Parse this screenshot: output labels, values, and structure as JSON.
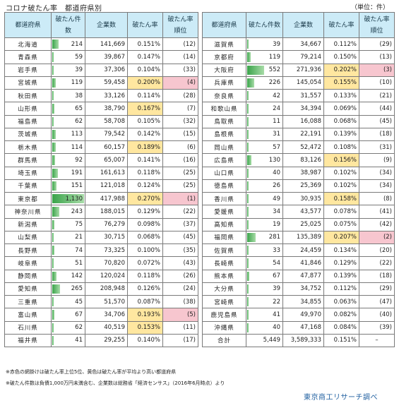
{
  "title": "コロナ破たん率　都道府県別",
  "unit": "（単位：件）",
  "headers": {
    "pref": "都道府県",
    "bankr": "破たん件数",
    "companies": "企業数",
    "rate": "破たん率",
    "rank": "破たん率順位"
  },
  "colors": {
    "header_bg": "#ccebf7",
    "yellow": "#ffe7a0",
    "pink": "#f7c6cf",
    "bar": "#3aa34a"
  },
  "left_rows": [
    {
      "pref": "北海道",
      "bankr": "214",
      "companies": "141,669",
      "rate": "0.151%",
      "rank": "(12)",
      "hl": ""
    },
    {
      "pref": "青森県",
      "bankr": "59",
      "companies": "39,867",
      "rate": "0.147%",
      "rank": "(14)",
      "hl": ""
    },
    {
      "pref": "岩手県",
      "bankr": "39",
      "companies": "37,306",
      "rate": "0.104%",
      "rank": "(33)",
      "hl": ""
    },
    {
      "pref": "宮城県",
      "bankr": "119",
      "companies": "59,458",
      "rate": "0.200%",
      "rank": "(4)",
      "hl": "top"
    },
    {
      "pref": "秋田県",
      "bankr": "38",
      "companies": "33,126",
      "rate": "0.114%",
      "rank": "(28)",
      "hl": ""
    },
    {
      "pref": "山形県",
      "bankr": "65",
      "companies": "38,790",
      "rate": "0.167%",
      "rank": "(7)",
      "hl": "above"
    },
    {
      "pref": "福島県",
      "bankr": "62",
      "companies": "58,708",
      "rate": "0.105%",
      "rank": "(32)",
      "hl": ""
    },
    {
      "pref": "茨城県",
      "bankr": "113",
      "companies": "79,542",
      "rate": "0.142%",
      "rank": "(15)",
      "hl": ""
    },
    {
      "pref": "栃木県",
      "bankr": "114",
      "companies": "60,157",
      "rate": "0.189%",
      "rank": "(6)",
      "hl": "above"
    },
    {
      "pref": "群馬県",
      "bankr": "92",
      "companies": "65,007",
      "rate": "0.141%",
      "rank": "(16)",
      "hl": ""
    },
    {
      "pref": "埼玉県",
      "bankr": "191",
      "companies": "161,613",
      "rate": "0.118%",
      "rank": "(25)",
      "hl": ""
    },
    {
      "pref": "千葉県",
      "bankr": "151",
      "companies": "121,018",
      "rate": "0.124%",
      "rank": "(25)",
      "hl": ""
    },
    {
      "pref": "東京都",
      "bankr": "1,130",
      "companies": "417,988",
      "rate": "0.270%",
      "rank": "(1)",
      "hl": "top"
    },
    {
      "pref": "神奈川県",
      "bankr": "243",
      "companies": "188,015",
      "rate": "0.129%",
      "rank": "(22)",
      "hl": ""
    },
    {
      "pref": "新潟県",
      "bankr": "75",
      "companies": "76,279",
      "rate": "0.098%",
      "rank": "(37)",
      "hl": ""
    },
    {
      "pref": "山梨県",
      "bankr": "21",
      "companies": "30,715",
      "rate": "0.068%",
      "rank": "(45)",
      "hl": ""
    },
    {
      "pref": "長野県",
      "bankr": "74",
      "companies": "73,325",
      "rate": "0.100%",
      "rank": "(35)",
      "hl": ""
    },
    {
      "pref": "岐阜県",
      "bankr": "51",
      "companies": "70,820",
      "rate": "0.072%",
      "rank": "(43)",
      "hl": ""
    },
    {
      "pref": "静岡県",
      "bankr": "142",
      "companies": "120,024",
      "rate": "0.118%",
      "rank": "(26)",
      "hl": ""
    },
    {
      "pref": "愛知県",
      "bankr": "265",
      "companies": "208,948",
      "rate": "0.126%",
      "rank": "(24)",
      "hl": ""
    },
    {
      "pref": "三重県",
      "bankr": "45",
      "companies": "51,570",
      "rate": "0.087%",
      "rank": "(38)",
      "hl": ""
    },
    {
      "pref": "富山県",
      "bankr": "67",
      "companies": "34,706",
      "rate": "0.193%",
      "rank": "(5)",
      "hl": "top"
    },
    {
      "pref": "石川県",
      "bankr": "62",
      "companies": "40,519",
      "rate": "0.153%",
      "rank": "(11)",
      "hl": "above"
    },
    {
      "pref": "福井県",
      "bankr": "41",
      "companies": "29,255",
      "rate": "0.140%",
      "rank": "(17)",
      "hl": ""
    }
  ],
  "right_rows": [
    {
      "pref": "滋賀県",
      "bankr": "39",
      "companies": "34,667",
      "rate": "0.112%",
      "rank": "(29)",
      "hl": ""
    },
    {
      "pref": "京都府",
      "bankr": "119",
      "companies": "79,214",
      "rate": "0.150%",
      "rank": "(13)",
      "hl": ""
    },
    {
      "pref": "大阪府",
      "bankr": "552",
      "companies": "271,936",
      "rate": "0.202%",
      "rank": "(3)",
      "hl": "top"
    },
    {
      "pref": "兵庫県",
      "bankr": "226",
      "companies": "145,054",
      "rate": "0.155%",
      "rank": "(10)",
      "hl": "above"
    },
    {
      "pref": "奈良県",
      "bankr": "42",
      "companies": "31,557",
      "rate": "0.133%",
      "rank": "(21)",
      "hl": ""
    },
    {
      "pref": "和歌山県",
      "bankr": "24",
      "companies": "34,394",
      "rate": "0.069%",
      "rank": "(44)",
      "hl": ""
    },
    {
      "pref": "鳥取県",
      "bankr": "11",
      "companies": "16,088",
      "rate": "0.068%",
      "rank": "(45)",
      "hl": ""
    },
    {
      "pref": "島根県",
      "bankr": "31",
      "companies": "22,191",
      "rate": "0.139%",
      "rank": "(18)",
      "hl": ""
    },
    {
      "pref": "岡山県",
      "bankr": "57",
      "companies": "52,472",
      "rate": "0.108%",
      "rank": "(31)",
      "hl": ""
    },
    {
      "pref": "広島県",
      "bankr": "130",
      "companies": "83,126",
      "rate": "0.156%",
      "rank": "(9)",
      "hl": "above"
    },
    {
      "pref": "山口県",
      "bankr": "40",
      "companies": "38,987",
      "rate": "0.102%",
      "rank": "(34)",
      "hl": ""
    },
    {
      "pref": "徳島県",
      "bankr": "26",
      "companies": "25,369",
      "rate": "0.102%",
      "rank": "(34)",
      "hl": ""
    },
    {
      "pref": "香川県",
      "bankr": "49",
      "companies": "30,935",
      "rate": "0.158%",
      "rank": "(8)",
      "hl": "above"
    },
    {
      "pref": "愛媛県",
      "bankr": "34",
      "companies": "43,577",
      "rate": "0.078%",
      "rank": "(41)",
      "hl": ""
    },
    {
      "pref": "高知県",
      "bankr": "19",
      "companies": "25,025",
      "rate": "0.075%",
      "rank": "(42)",
      "hl": ""
    },
    {
      "pref": "福岡県",
      "bankr": "281",
      "companies": "135,389",
      "rate": "0.207%",
      "rank": "(2)",
      "hl": "top"
    },
    {
      "pref": "佐賀県",
      "bankr": "33",
      "companies": "24,459",
      "rate": "0.134%",
      "rank": "(20)",
      "hl": ""
    },
    {
      "pref": "長崎県",
      "bankr": "54",
      "companies": "41,846",
      "rate": "0.129%",
      "rank": "(22)",
      "hl": ""
    },
    {
      "pref": "熊本県",
      "bankr": "67",
      "companies": "47,877",
      "rate": "0.139%",
      "rank": "(18)",
      "hl": ""
    },
    {
      "pref": "大分県",
      "bankr": "39",
      "companies": "34,752",
      "rate": "0.112%",
      "rank": "(29)",
      "hl": ""
    },
    {
      "pref": "宮崎県",
      "bankr": "22",
      "companies": "34,855",
      "rate": "0.063%",
      "rank": "(47)",
      "hl": ""
    },
    {
      "pref": "鹿児島県",
      "bankr": "41",
      "companies": "49,970",
      "rate": "0.082%",
      "rank": "(40)",
      "hl": ""
    },
    {
      "pref": "沖縄県",
      "bankr": "40",
      "companies": "47,168",
      "rate": "0.084%",
      "rank": "(39)",
      "hl": ""
    },
    {
      "pref": "合計",
      "bankr": "5,449",
      "companies": "3,589,333",
      "rate": "0.151%",
      "rank": "–",
      "hl": "",
      "total": true
    }
  ],
  "notes": {
    "note1": "※赤色の網掛けは破たん率上位5位、黄色は破たん率が平均より高い都道府県",
    "note2": "※破たん件数は負債1,000万円未満含む、企業数は総務省「経済センサス」（2016年6月時点）より"
  },
  "credit": "東京商工リサーチ調べ"
}
